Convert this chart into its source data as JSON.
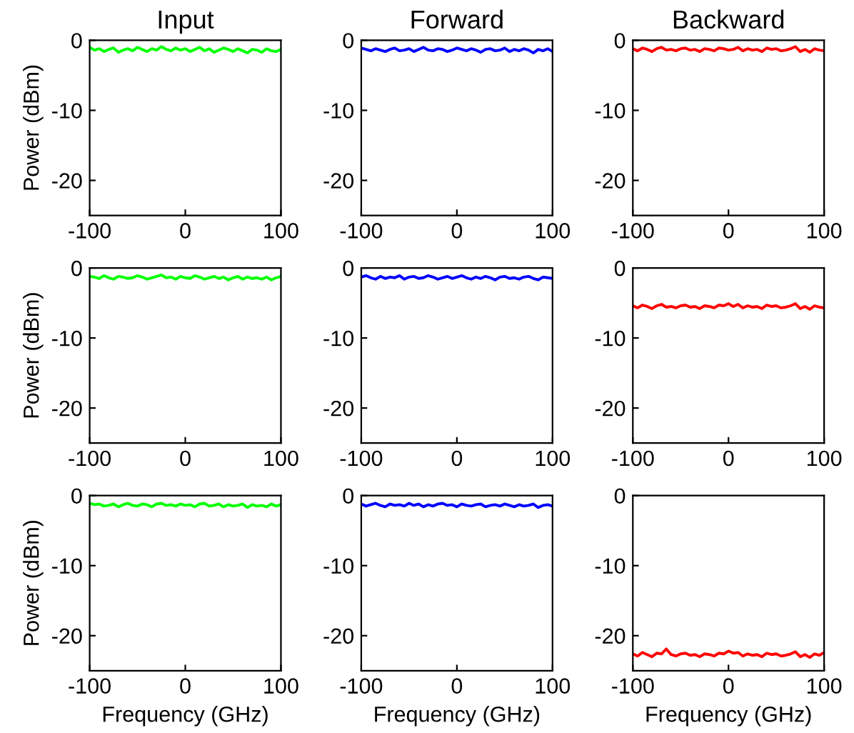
{
  "chart_data": [
    {
      "type": "line",
      "title": "Input",
      "ylabel": "Power (dBm)",
      "x": [
        -100,
        -95,
        -90,
        -85,
        -80,
        -75,
        -70,
        -65,
        -60,
        -55,
        -50,
        -45,
        -40,
        -35,
        -30,
        -25,
        -20,
        -15,
        -10,
        -5,
        0,
        5,
        10,
        15,
        20,
        25,
        30,
        35,
        40,
        45,
        50,
        55,
        60,
        65,
        70,
        75,
        80,
        85,
        90,
        95,
        100
      ],
      "xlim": [
        -100,
        100
      ],
      "xticks": [
        -100,
        0,
        100
      ],
      "ylim": [
        -25,
        0
      ],
      "yticks": [
        -20,
        -10,
        0
      ],
      "series": [
        {
          "color": "#00ff00",
          "values": [
            -1.0,
            -1.4,
            -1.2,
            -1.6,
            -1.3,
            -1.1,
            -1.7,
            -1.4,
            -1.2,
            -1.5,
            -1.0,
            -1.3,
            -1.6,
            -1.2,
            -1.4,
            -0.9,
            -1.3,
            -1.5,
            -1.1,
            -1.4,
            -1.2,
            -1.6,
            -1.3,
            -1.0,
            -1.5,
            -1.2,
            -1.7,
            -1.4,
            -1.1,
            -1.3,
            -1.6,
            -1.2,
            -1.5,
            -1.8,
            -1.3,
            -1.4,
            -1.7,
            -1.2,
            -1.5,
            -1.6,
            -1.3
          ]
        }
      ]
    },
    {
      "type": "line",
      "title": "Forward",
      "x": [
        -100,
        -95,
        -90,
        -85,
        -80,
        -75,
        -70,
        -65,
        -60,
        -55,
        -50,
        -45,
        -40,
        -35,
        -30,
        -25,
        -20,
        -15,
        -10,
        -5,
        0,
        5,
        10,
        15,
        20,
        25,
        30,
        35,
        40,
        45,
        50,
        55,
        60,
        65,
        70,
        75,
        80,
        85,
        90,
        95,
        100
      ],
      "xlim": [
        -100,
        100
      ],
      "xticks": [
        -100,
        0,
        100
      ],
      "ylim": [
        -25,
        0
      ],
      "yticks": [
        -20,
        -10,
        0
      ],
      "series": [
        {
          "color": "#0000ff",
          "values": [
            -1.1,
            -1.3,
            -1.5,
            -1.2,
            -1.4,
            -1.6,
            -1.3,
            -1.1,
            -1.5,
            -1.4,
            -1.2,
            -1.6,
            -1.3,
            -1.0,
            -1.4,
            -1.5,
            -1.2,
            -1.3,
            -1.6,
            -1.4,
            -1.1,
            -1.3,
            -1.5,
            -1.2,
            -1.4,
            -1.7,
            -1.3,
            -1.2,
            -1.5,
            -1.4,
            -1.1,
            -1.6,
            -1.3,
            -1.5,
            -1.2,
            -1.4,
            -1.8,
            -1.3,
            -1.5,
            -1.2,
            -1.6
          ]
        }
      ]
    },
    {
      "type": "line",
      "title": "Backward",
      "x": [
        -100,
        -95,
        -90,
        -85,
        -80,
        -75,
        -70,
        -65,
        -60,
        -55,
        -50,
        -45,
        -40,
        -35,
        -30,
        -25,
        -20,
        -15,
        -10,
        -5,
        0,
        5,
        10,
        15,
        20,
        25,
        30,
        35,
        40,
        45,
        50,
        55,
        60,
        65,
        70,
        75,
        80,
        85,
        90,
        95,
        100
      ],
      "xlim": [
        -100,
        100
      ],
      "xticks": [
        -100,
        0,
        100
      ],
      "ylim": [
        -25,
        0
      ],
      "yticks": [
        -20,
        -10,
        0
      ],
      "series": [
        {
          "color": "#ff0000",
          "values": [
            -1.2,
            -1.5,
            -1.1,
            -1.3,
            -1.6,
            -1.2,
            -1.0,
            -1.4,
            -1.3,
            -1.5,
            -1.2,
            -1.1,
            -1.4,
            -1.3,
            -1.6,
            -1.2,
            -1.3,
            -1.5,
            -1.1,
            -1.2,
            -1.4,
            -1.3,
            -1.0,
            -1.5,
            -1.2,
            -1.4,
            -1.3,
            -1.6,
            -1.1,
            -1.3,
            -1.2,
            -1.5,
            -1.4,
            -1.2,
            -0.9,
            -1.6,
            -1.3,
            -1.7,
            -1.2,
            -1.4,
            -1.5
          ]
        }
      ]
    },
    {
      "type": "line",
      "ylabel": "Power (dBm)",
      "x": [
        -100,
        -95,
        -90,
        -85,
        -80,
        -75,
        -70,
        -65,
        -60,
        -55,
        -50,
        -45,
        -40,
        -35,
        -30,
        -25,
        -20,
        -15,
        -10,
        -5,
        0,
        5,
        10,
        15,
        20,
        25,
        30,
        35,
        40,
        45,
        50,
        55,
        60,
        65,
        70,
        75,
        80,
        85,
        90,
        95,
        100
      ],
      "xlim": [
        -100,
        100
      ],
      "xticks": [
        -100,
        0,
        100
      ],
      "ylim": [
        -25,
        0
      ],
      "yticks": [
        -20,
        -10,
        0
      ],
      "series": [
        {
          "color": "#00ff00",
          "values": [
            -1.2,
            -1.3,
            -1.5,
            -1.1,
            -1.4,
            -1.6,
            -1.2,
            -1.3,
            -1.5,
            -1.4,
            -1.1,
            -1.3,
            -1.6,
            -1.4,
            -1.2,
            -1.0,
            -1.4,
            -1.3,
            -1.6,
            -1.2,
            -1.4,
            -1.5,
            -1.1,
            -1.3,
            -1.6,
            -1.4,
            -1.2,
            -1.5,
            -1.3,
            -1.7,
            -1.4,
            -1.2,
            -1.6,
            -1.3,
            -1.5,
            -1.4,
            -1.6,
            -1.3,
            -1.7,
            -1.4,
            -1.2
          ]
        }
      ]
    },
    {
      "type": "line",
      "x": [
        -100,
        -95,
        -90,
        -85,
        -80,
        -75,
        -70,
        -65,
        -60,
        -55,
        -50,
        -45,
        -40,
        -35,
        -30,
        -25,
        -20,
        -15,
        -10,
        -5,
        0,
        5,
        10,
        15,
        20,
        25,
        30,
        35,
        40,
        45,
        50,
        55,
        60,
        65,
        70,
        75,
        80,
        85,
        90,
        95,
        100
      ],
      "xlim": [
        -100,
        100
      ],
      "xticks": [
        -100,
        0,
        100
      ],
      "ylim": [
        -25,
        0
      ],
      "yticks": [
        -20,
        -10,
        0
      ],
      "series": [
        {
          "color": "#0000ff",
          "values": [
            -1.3,
            -1.1,
            -1.4,
            -1.6,
            -1.2,
            -1.5,
            -1.3,
            -1.4,
            -1.1,
            -1.6,
            -1.3,
            -1.2,
            -1.5,
            -1.4,
            -1.1,
            -1.3,
            -1.6,
            -1.4,
            -1.2,
            -1.5,
            -1.3,
            -1.1,
            -1.4,
            -1.6,
            -1.3,
            -1.5,
            -1.2,
            -1.4,
            -1.7,
            -1.3,
            -1.2,
            -1.5,
            -1.4,
            -1.6,
            -1.3,
            -1.2,
            -1.5,
            -1.7,
            -1.3,
            -1.4,
            -1.5
          ]
        }
      ]
    },
    {
      "type": "line",
      "x": [
        -100,
        -95,
        -90,
        -85,
        -80,
        -75,
        -70,
        -65,
        -60,
        -55,
        -50,
        -45,
        -40,
        -35,
        -30,
        -25,
        -20,
        -15,
        -10,
        -5,
        0,
        5,
        10,
        15,
        20,
        25,
        30,
        35,
        40,
        45,
        50,
        55,
        60,
        65,
        70,
        75,
        80,
        85,
        90,
        95,
        100
      ],
      "xlim": [
        -100,
        100
      ],
      "xticks": [
        -100,
        0,
        100
      ],
      "ylim": [
        -25,
        0
      ],
      "yticks": [
        -20,
        -10,
        0
      ],
      "series": [
        {
          "color": "#ff0000",
          "values": [
            -5.4,
            -5.7,
            -5.3,
            -5.5,
            -5.8,
            -5.4,
            -5.2,
            -5.6,
            -5.5,
            -5.7,
            -5.4,
            -5.3,
            -5.6,
            -5.5,
            -5.8,
            -5.4,
            -5.5,
            -5.7,
            -5.3,
            -5.4,
            -5.1,
            -5.5,
            -5.2,
            -5.7,
            -5.4,
            -5.6,
            -5.5,
            -5.8,
            -5.3,
            -5.5,
            -5.4,
            -5.7,
            -5.6,
            -5.4,
            -5.1,
            -5.8,
            -5.5,
            -5.9,
            -5.4,
            -5.6,
            -5.7
          ]
        }
      ]
    },
    {
      "type": "line",
      "ylabel": "Power (dBm)",
      "xlabel": "Frequency (GHz)",
      "x": [
        -100,
        -95,
        -90,
        -85,
        -80,
        -75,
        -70,
        -65,
        -60,
        -55,
        -50,
        -45,
        -40,
        -35,
        -30,
        -25,
        -20,
        -15,
        -10,
        -5,
        0,
        5,
        10,
        15,
        20,
        25,
        30,
        35,
        40,
        45,
        50,
        55,
        60,
        65,
        70,
        75,
        80,
        85,
        90,
        95,
        100
      ],
      "xlim": [
        -100,
        100
      ],
      "xticks": [
        -100,
        0,
        100
      ],
      "ylim": [
        -25,
        0
      ],
      "yticks": [
        -20,
        -10,
        0
      ],
      "series": [
        {
          "color": "#00ff00",
          "values": [
            -1.1,
            -1.3,
            -1.2,
            -1.5,
            -1.4,
            -1.2,
            -1.6,
            -1.3,
            -1.1,
            -1.4,
            -1.5,
            -1.2,
            -1.3,
            -1.6,
            -1.2,
            -1.1,
            -1.4,
            -1.3,
            -1.5,
            -1.2,
            -1.4,
            -1.3,
            -1.6,
            -1.2,
            -1.1,
            -1.5,
            -1.4,
            -1.2,
            -1.6,
            -1.3,
            -1.5,
            -1.4,
            -1.2,
            -1.7,
            -1.3,
            -1.5,
            -1.4,
            -1.6,
            -1.2,
            -1.5,
            -1.3
          ]
        }
      ]
    },
    {
      "type": "line",
      "xlabel": "Frequency (GHz)",
      "x": [
        -100,
        -95,
        -90,
        -85,
        -80,
        -75,
        -70,
        -65,
        -60,
        -55,
        -50,
        -45,
        -40,
        -35,
        -30,
        -25,
        -20,
        -15,
        -10,
        -5,
        0,
        5,
        10,
        15,
        20,
        25,
        30,
        35,
        40,
        45,
        50,
        55,
        60,
        65,
        70,
        75,
        80,
        85,
        90,
        95,
        100
      ],
      "xlim": [
        -100,
        100
      ],
      "xticks": [
        -100,
        0,
        100
      ],
      "ylim": [
        -25,
        0
      ],
      "yticks": [
        -20,
        -10,
        0
      ],
      "series": [
        {
          "color": "#0000ff",
          "values": [
            -1.2,
            -1.5,
            -1.3,
            -1.1,
            -1.4,
            -1.6,
            -1.2,
            -1.4,
            -1.3,
            -1.5,
            -1.1,
            -1.4,
            -1.2,
            -1.6,
            -1.3,
            -1.5,
            -1.2,
            -1.1,
            -1.4,
            -1.3,
            -1.6,
            -1.2,
            -1.4,
            -1.5,
            -1.3,
            -1.2,
            -1.6,
            -1.4,
            -1.3,
            -1.5,
            -1.2,
            -1.4,
            -1.6,
            -1.3,
            -1.5,
            -1.4,
            -1.2,
            -1.7,
            -1.4,
            -1.3,
            -1.5
          ]
        }
      ]
    },
    {
      "type": "line",
      "xlabel": "Frequency (GHz)",
      "x": [
        -100,
        -95,
        -90,
        -85,
        -80,
        -75,
        -70,
        -65,
        -60,
        -55,
        -50,
        -45,
        -40,
        -35,
        -30,
        -25,
        -20,
        -15,
        -10,
        -5,
        0,
        5,
        10,
        15,
        20,
        25,
        30,
        35,
        40,
        45,
        50,
        55,
        60,
        65,
        70,
        75,
        80,
        85,
        90,
        95,
        100
      ],
      "xlim": [
        -100,
        100
      ],
      "xticks": [
        -100,
        0,
        100
      ],
      "ylim": [
        -25,
        0
      ],
      "yticks": [
        -20,
        -10,
        0
      ],
      "series": [
        {
          "color": "#ff0000",
          "values": [
            -22.6,
            -22.9,
            -22.4,
            -22.7,
            -23.0,
            -22.5,
            -22.6,
            -21.9,
            -22.7,
            -22.9,
            -22.6,
            -22.5,
            -22.8,
            -22.7,
            -23.0,
            -22.6,
            -22.7,
            -22.9,
            -22.5,
            -22.6,
            -22.2,
            -22.5,
            -22.4,
            -22.9,
            -22.6,
            -22.8,
            -22.7,
            -23.0,
            -22.5,
            -22.7,
            -22.6,
            -22.9,
            -22.8,
            -22.6,
            -22.3,
            -23.0,
            -22.7,
            -23.1,
            -22.6,
            -22.8,
            -22.4
          ]
        }
      ]
    }
  ]
}
